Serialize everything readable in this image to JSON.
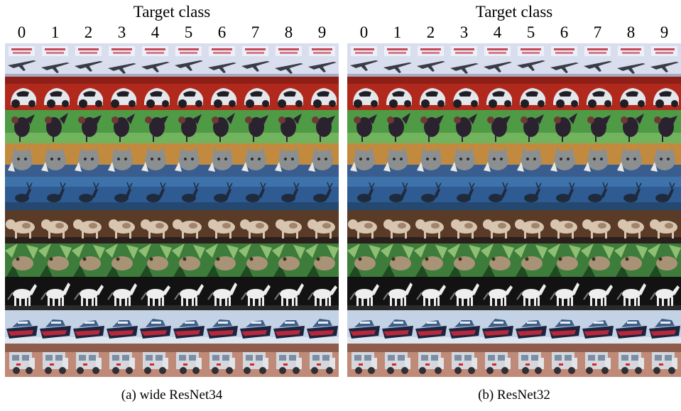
{
  "figure": {
    "panels": [
      {
        "id": "a",
        "header": "Target class",
        "columns": [
          "0",
          "1",
          "2",
          "3",
          "4",
          "5",
          "6",
          "7",
          "8",
          "9"
        ],
        "caption": "(a) wide ResNet34"
      },
      {
        "id": "b",
        "header": "Target class",
        "columns": [
          "0",
          "1",
          "2",
          "3",
          "4",
          "5",
          "6",
          "7",
          "8",
          "9"
        ],
        "caption": "(b) ResNet32"
      }
    ],
    "rows": [
      {
        "subject": "airplane",
        "bg": "#d9deef",
        "fg": "#3a3c45",
        "accent": "#c64a5a",
        "tint": "#a6adc2"
      },
      {
        "subject": "car",
        "bg": "#b1281c",
        "fg": "#e3e6ea",
        "accent": "#1e1e24",
        "tint": "#6b1510"
      },
      {
        "subject": "bird",
        "bg": "#4f9a45",
        "fg": "#2b2230",
        "accent": "#6d3a34",
        "tint": "#72b45d"
      },
      {
        "subject": "cat",
        "bg": "#c18a3e",
        "fg": "#8c8f90",
        "accent": "#e8e8e4",
        "tint": "#3a5d8f"
      },
      {
        "subject": "deer",
        "bg": "#2e5b92",
        "fg": "#1f2b3d",
        "accent": "#4a82bb",
        "tint": "#24486f"
      },
      {
        "subject": "dog",
        "bg": "#5a3b27",
        "fg": "#d7c5b0",
        "accent": "#2a1f1c",
        "tint": "#7b5a3f"
      },
      {
        "subject": "frog",
        "bg": "#3d7c3a",
        "fg": "#a99376",
        "accent": "#8fbf73",
        "tint": "#1f4a22"
      },
      {
        "subject": "horse",
        "bg": "#121212",
        "fg": "#eeeeee",
        "accent": "#7a7a7a",
        "tint": "#2a2a2a"
      },
      {
        "subject": "ship",
        "bg": "#c4d2e6",
        "fg": "#3e5f88",
        "accent": "#b9283a",
        "tint": "#1c2440"
      },
      {
        "subject": "truck",
        "bg": "#c08a78",
        "fg": "#d5d7dc",
        "accent": "#2f2f35",
        "tint": "#8d5c4c"
      }
    ]
  }
}
